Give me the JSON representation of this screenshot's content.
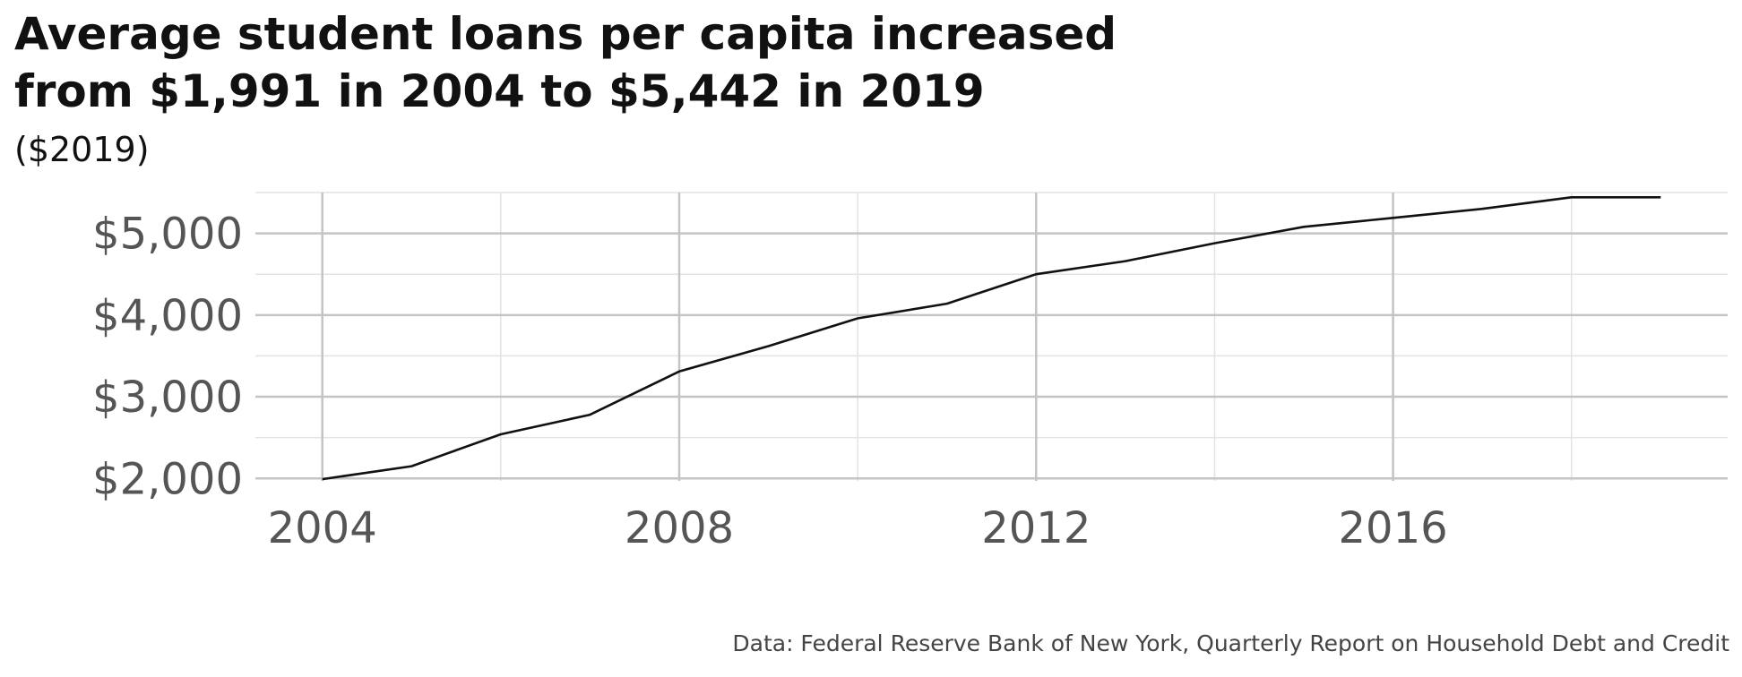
{
  "title_lines": [
    "Average student loans per capita increased",
    "from $1,991 in 2004 to $5,442 in 2019"
  ],
  "subtitle": "($2019)",
  "caption": "Data: Federal Reserve Bank of New York, Quarterly Report on Household Debt and Credit",
  "colors": {
    "line": "#111111",
    "grid_major": "#c4c4c4",
    "grid_minor": "#e3e3e3",
    "tick_text": "#555555"
  },
  "chart_data": {
    "type": "line",
    "title": "Average student loans per capita increased from $1,991 in 2004 to $5,442 in 2019",
    "subtitle": "($2019)",
    "xlabel": "",
    "ylabel": "",
    "x": [
      2004,
      2005,
      2006,
      2007,
      2008,
      2009,
      2010,
      2011,
      2012,
      2013,
      2014,
      2015,
      2016,
      2017,
      2018,
      2019
    ],
    "series": [
      {
        "values": [
          1991,
          2150,
          2540,
          2780,
          3310,
          3620,
          3960,
          4140,
          4500,
          4660,
          4880,
          5080,
          5190,
          5300,
          5442,
          5442
        ]
      }
    ],
    "xlim": [
      2003.25,
      2019.75
    ],
    "ylim": [
      1970,
      5500
    ],
    "x_ticks": [
      2004,
      2008,
      2012,
      2016
    ],
    "x_tick_labels": [
      "2004",
      "2008",
      "2012",
      "2016"
    ],
    "y_ticks": [
      2000,
      3000,
      4000,
      5000
    ],
    "y_tick_labels": [
      "$2,000",
      "$3,000",
      "$4,000",
      "$5,000"
    ],
    "grid": true,
    "legend": "none"
  }
}
